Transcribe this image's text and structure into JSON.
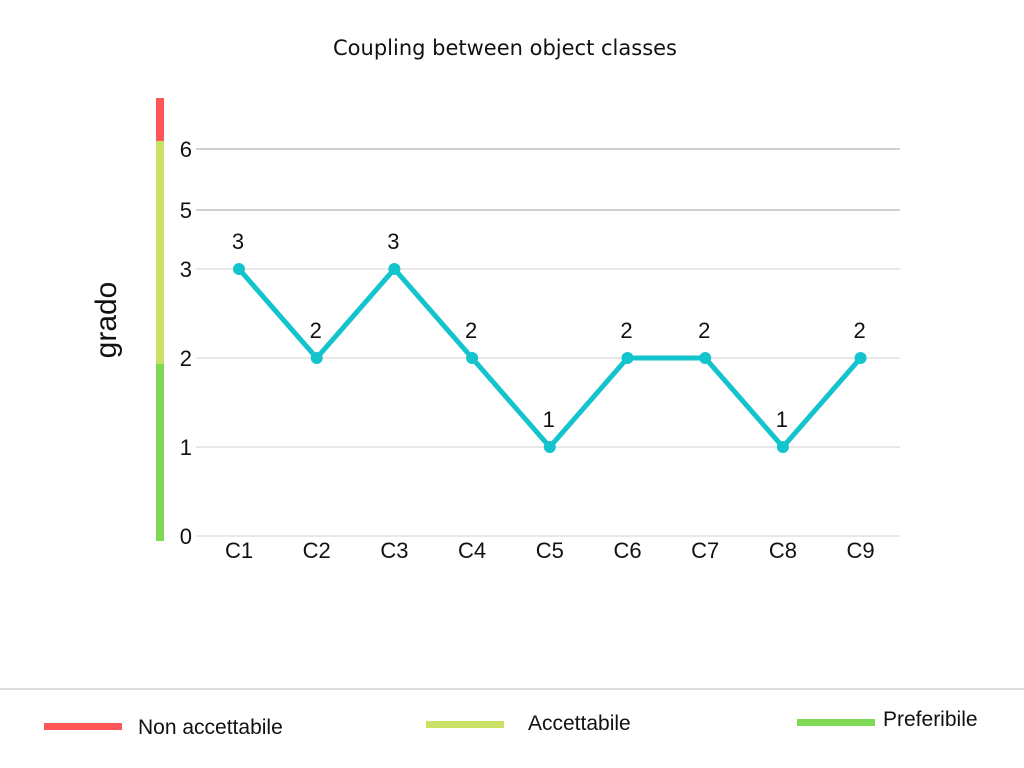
{
  "chart_data": {
    "type": "line",
    "title": "Coupling between object classes",
    "ylabel": "grado",
    "xlabel": "",
    "categories": [
      "C1",
      "C2",
      "C3",
      "C4",
      "C5",
      "C6",
      "C7",
      "C8",
      "C9"
    ],
    "series": [
      {
        "values": [
          3,
          2,
          3,
          2,
          1,
          2,
          2,
          1,
          2
        ],
        "color": "#14c4cc"
      }
    ],
    "y_ticks": [
      "0",
      "1",
      "2",
      "3",
      "5",
      "6"
    ],
    "ylim": [
      0,
      6
    ],
    "grid": true,
    "legend_position": "bottom",
    "thresholds": [
      {
        "label": "Preferibile",
        "from": 0,
        "to": 2,
        "color": "#7ed957"
      },
      {
        "label": "Accettabile",
        "from": 2,
        "to": 6,
        "color": "#c9e265"
      },
      {
        "label": "Non accettabile",
        "from": 6,
        "to": null,
        "color": "#ff5757"
      }
    ]
  },
  "legend": [
    {
      "label": "Non accettabile",
      "color": "#ff5757"
    },
    {
      "label": "Accettabile",
      "color": "#c9e265"
    },
    {
      "label": "Preferibile",
      "color": "#7ed957"
    }
  ]
}
